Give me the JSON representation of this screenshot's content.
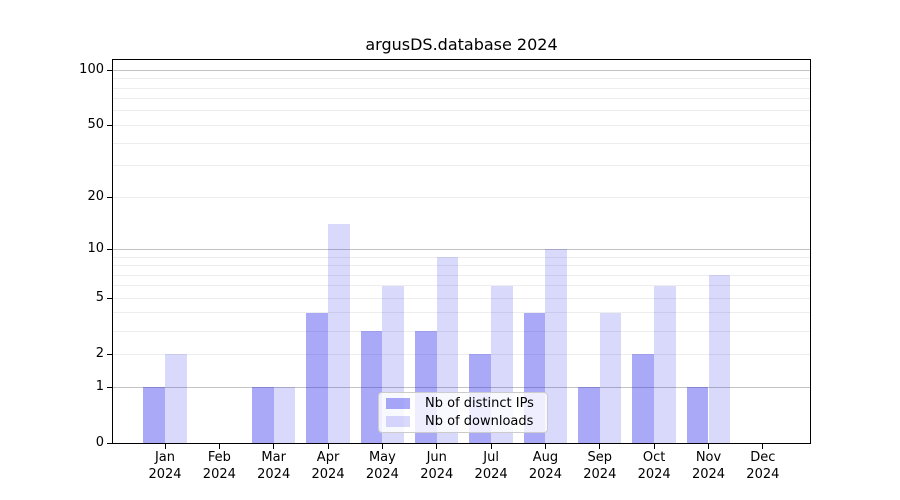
{
  "chart_data": {
    "type": "bar",
    "title": "argusDS.database 2024",
    "categories": [
      "Jan",
      "Feb",
      "Mar",
      "Apr",
      "May",
      "Jun",
      "Jul",
      "Aug",
      "Sep",
      "Oct",
      "Nov",
      "Dec"
    ],
    "year_label": "2024",
    "series": [
      {
        "name": "Nb of distinct IPs",
        "color": "rgba(30,30,235,0.38)",
        "values": [
          1,
          0,
          1,
          4,
          3,
          3,
          2,
          4,
          1,
          2,
          1,
          0
        ]
      },
      {
        "name": "Nb of downloads",
        "color": "rgba(30,30,235,0.17)",
        "values": [
          2,
          0,
          1,
          14,
          6,
          9,
          6,
          10,
          4,
          6,
          7,
          0
        ]
      }
    ],
    "y_axis": {
      "scale": "log1p",
      "tick_values": [
        0,
        1,
        2,
        5,
        10,
        20,
        50,
        100
      ],
      "tick_labels": [
        "0",
        "1",
        "2",
        "5",
        "10",
        "20",
        "50",
        "100"
      ],
      "range": [
        0,
        113
      ]
    },
    "grid": {
      "major_values": [
        1,
        10,
        100
      ],
      "minor_values": [
        2,
        3,
        4,
        5,
        6,
        7,
        8,
        9,
        20,
        30,
        40,
        50,
        60,
        70,
        80,
        90
      ],
      "major_color": "#c3c3c3",
      "minor_color": "#ededed"
    },
    "legend": {
      "position": "lower-center"
    }
  }
}
